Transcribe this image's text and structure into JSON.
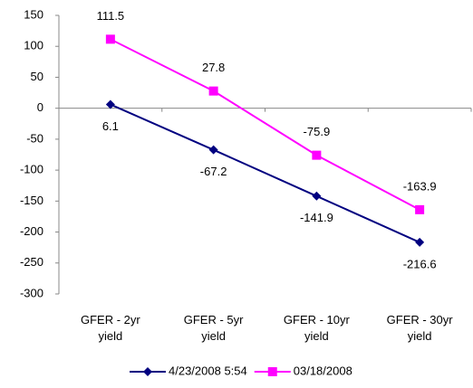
{
  "chart_data": {
    "type": "line",
    "categories": [
      "GFER - 2yr yield",
      "GFER - 5yr yield",
      "GFER - 10yr yield",
      "GFER - 30yr yield"
    ],
    "series": [
      {
        "name": "4/23/2008 5:54",
        "color": "#000080",
        "marker": "diamond",
        "values": [
          6.1,
          -67.2,
          -141.9,
          -216.6
        ]
      },
      {
        "name": "03/18/2008",
        "color": "#ff00ff",
        "marker": "square",
        "values": [
          111.5,
          27.8,
          -75.9,
          -163.9
        ]
      }
    ],
    "ylim": [
      -300,
      150
    ],
    "yticks": [
      -300,
      -250,
      -200,
      -150,
      -100,
      -50,
      0,
      50,
      100,
      150
    ],
    "grid": false,
    "legend": "bottom"
  }
}
